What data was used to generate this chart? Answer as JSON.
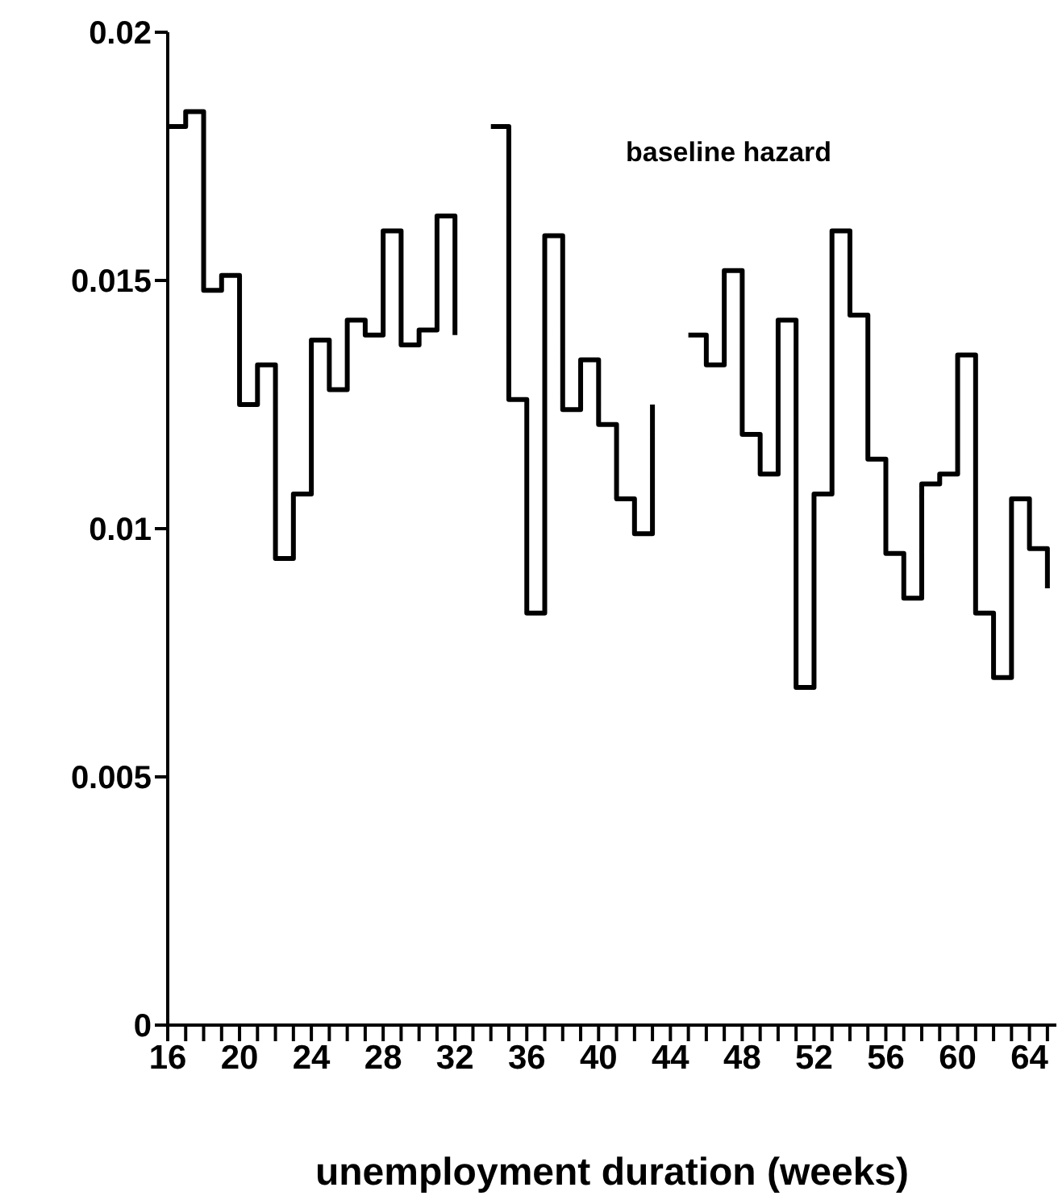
{
  "chart_data": {
    "type": "step",
    "xlabel": "unemployment duration (weeks)",
    "annotations": [
      "baseline hazard"
    ],
    "x": [
      16,
      17,
      18,
      19,
      20,
      21,
      22,
      23,
      24,
      25,
      26,
      27,
      28,
      29,
      30,
      31,
      32,
      33,
      34,
      35,
      36,
      37,
      38,
      39,
      40,
      41,
      42,
      43,
      44,
      45,
      46,
      47,
      48,
      49,
      50,
      51,
      52,
      53,
      54,
      55,
      56,
      57,
      58,
      59,
      60,
      61,
      62,
      63,
      64,
      65
    ],
    "series": [
      {
        "color": "#000000",
        "values": [
          0.0181,
          0.0184,
          0.0148,
          0.0151,
          0.0125,
          0.0133,
          0.0094,
          0.0107,
          0.0138,
          0.0128,
          0.0142,
          0.0139,
          0.016,
          0.0137,
          0.014,
          0.0163,
          0.0139,
          null,
          0.0181,
          0.0126,
          0.0083,
          0.0159,
          0.0124,
          0.0134,
          0.0121,
          0.0106,
          0.0099,
          0.0125,
          null,
          0.0139,
          0.0133,
          0.0152,
          0.0119,
          0.0111,
          0.0142,
          0.0068,
          0.0107,
          0.016,
          0.0143,
          0.0114,
          0.0095,
          0.0086,
          0.0109,
          0.0111,
          0.0135,
          0.0083,
          0.007,
          0.0106,
          0.0096,
          0.0088
        ]
      }
    ],
    "xlim": [
      16,
      65.5
    ],
    "xticks": [
      16,
      {
        "value": 17,
        "label": null
      },
      {
        "value": 18,
        "label": null
      },
      {
        "value": 19,
        "label": null
      },
      20,
      {
        "value": 21,
        "label": null
      },
      {
        "value": 22,
        "label": null
      },
      {
        "value": 23,
        "label": null
      },
      24,
      {
        "value": 25,
        "label": null
      },
      {
        "value": 26,
        "label": null
      },
      {
        "value": 27,
        "label": null
      },
      28,
      {
        "value": 29,
        "label": null
      },
      {
        "value": 30,
        "label": null
      },
      {
        "value": 31,
        "label": null
      },
      32,
      {
        "value": 33,
        "label": null
      },
      {
        "value": 34,
        "label": null
      },
      {
        "value": 35,
        "label": null
      },
      36,
      {
        "value": 37,
        "label": null
      },
      {
        "value": 38,
        "label": null
      },
      {
        "value": 39,
        "label": null
      },
      40,
      {
        "value": 41,
        "label": null
      },
      {
        "value": 42,
        "label": null
      },
      {
        "value": 43,
        "label": null
      },
      44,
      {
        "value": 45,
        "label": null
      },
      {
        "value": 46,
        "label": null
      },
      {
        "value": 47,
        "label": null
      },
      48,
      {
        "value": 49,
        "label": null
      },
      {
        "value": 50,
        "label": null
      },
      {
        "value": 51,
        "label": null
      },
      52,
      {
        "value": 53,
        "label": null
      },
      {
        "value": 54,
        "label": null
      },
      {
        "value": 55,
        "label": null
      },
      56,
      {
        "value": 57,
        "label": null
      },
      {
        "value": 58,
        "label": null
      },
      {
        "value": 59,
        "label": null
      },
      60,
      {
        "value": 61,
        "label": null
      },
      {
        "value": 62,
        "label": null
      },
      {
        "value": 63,
        "label": null
      },
      64,
      {
        "value": 65,
        "label": null
      }
    ],
    "ylim": [
      0,
      0.02
    ],
    "yticks": [
      0,
      0.005,
      0.01,
      0.015,
      0.02
    ],
    "grid": false,
    "legend": false,
    "marker": "none",
    "line_style": "solid"
  }
}
